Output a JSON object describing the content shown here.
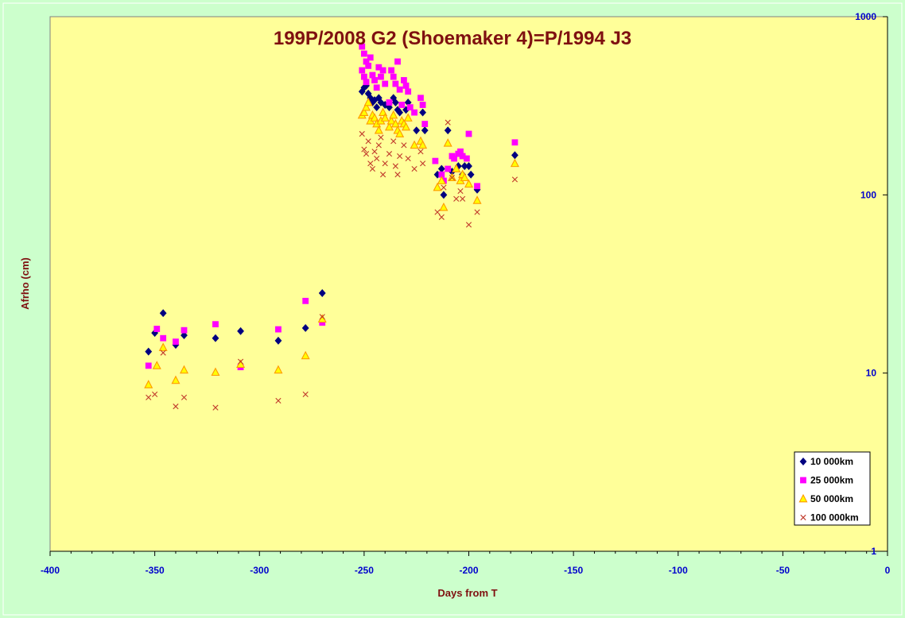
{
  "chart_data": {
    "type": "scatter",
    "title": "199P/2008 G2 (Shoemaker 4)=P/1994 J3",
    "xlabel": "Days from T",
    "ylabel": "Afrho (cm)",
    "xlim": [
      -400,
      0
    ],
    "ylim": [
      1,
      1000
    ],
    "yscale": "log",
    "x_ticks": [
      -400,
      -350,
      -300,
      -250,
      -200,
      -150,
      -100,
      -50,
      0
    ],
    "x_tick_labels": [
      "-400",
      "-350",
      "-300",
      "-250",
      "-200",
      "-150",
      "-100",
      "-50",
      "0"
    ],
    "y_ticks": [
      1,
      10,
      100,
      1000
    ],
    "y_tick_labels": [
      "1",
      "10",
      "100",
      "1000"
    ],
    "y_axis_side": "right",
    "grid": false,
    "legend_position": "bottom-right",
    "plot_background": "#ffff99",
    "page_background": "#ccffcc",
    "series": [
      {
        "name": "10 000km",
        "marker": "diamond",
        "color": "#000080",
        "points": [
          [
            -353,
            13.2
          ],
          [
            -350,
            16.8
          ],
          [
            -346,
            21.7
          ],
          [
            -340,
            14.4
          ],
          [
            -336,
            16.3
          ],
          [
            -321,
            15.7
          ],
          [
            -309,
            17.2
          ],
          [
            -291,
            15.2
          ],
          [
            -278,
            17.9
          ],
          [
            -270,
            28.1
          ],
          [
            -251,
            380
          ],
          [
            -250,
            400
          ],
          [
            -249,
            410
          ],
          [
            -248,
            370
          ],
          [
            -247,
            350
          ],
          [
            -246,
            330
          ],
          [
            -245,
            340
          ],
          [
            -244,
            310
          ],
          [
            -243,
            350
          ],
          [
            -242,
            330
          ],
          [
            -240,
            320
          ],
          [
            -238,
            310
          ],
          [
            -236,
            350
          ],
          [
            -235,
            330
          ],
          [
            -234,
            300
          ],
          [
            -233,
            290
          ],
          [
            -230,
            300
          ],
          [
            -229,
            330
          ],
          [
            -225,
            230
          ],
          [
            -222,
            290
          ],
          [
            -221,
            230
          ],
          [
            -215,
            130
          ],
          [
            -213,
            140
          ],
          [
            -212,
            100
          ],
          [
            -210,
            230
          ],
          [
            -208,
            135
          ],
          [
            -205,
            145
          ],
          [
            -203,
            130
          ],
          [
            -202,
            145
          ],
          [
            -200,
            145
          ],
          [
            -199,
            130
          ],
          [
            -196,
            107
          ],
          [
            -178,
            167
          ]
        ]
      },
      {
        "name": "25 000km",
        "marker": "square",
        "color": "#ff00ff",
        "points": [
          [
            -353,
            11.0
          ],
          [
            -349,
            17.7
          ],
          [
            -346,
            15.7
          ],
          [
            -340,
            15.0
          ],
          [
            -336,
            17.4
          ],
          [
            -321,
            18.8
          ],
          [
            -309,
            10.8
          ],
          [
            -291,
            17.6
          ],
          [
            -278,
            25.4
          ],
          [
            -270,
            19.2
          ],
          [
            -251,
            680
          ],
          [
            -250,
            620
          ],
          [
            -249,
            560
          ],
          [
            -248,
            530
          ],
          [
            -251,
            500
          ],
          [
            -250,
            460
          ],
          [
            -249,
            430
          ],
          [
            -247,
            590
          ],
          [
            -246,
            470
          ],
          [
            -245,
            440
          ],
          [
            -244,
            400
          ],
          [
            -243,
            520
          ],
          [
            -242,
            460
          ],
          [
            -241,
            500
          ],
          [
            -240,
            420
          ],
          [
            -238,
            330
          ],
          [
            -237,
            500
          ],
          [
            -236,
            460
          ],
          [
            -235,
            420
          ],
          [
            -234,
            560
          ],
          [
            -233,
            390
          ],
          [
            -232,
            320
          ],
          [
            -231,
            440
          ],
          [
            -230,
            410
          ],
          [
            -229,
            380
          ],
          [
            -228,
            310
          ],
          [
            -226,
            290
          ],
          [
            -223,
            350
          ],
          [
            -222,
            320
          ],
          [
            -221,
            250
          ],
          [
            -216,
            155
          ],
          [
            -213,
            130
          ],
          [
            -212,
            120
          ],
          [
            -210,
            140
          ],
          [
            -208,
            165
          ],
          [
            -207,
            160
          ],
          [
            -205,
            170
          ],
          [
            -204,
            175
          ],
          [
            -203,
            165
          ],
          [
            -201,
            160
          ],
          [
            -200,
            220
          ],
          [
            -196,
            112
          ],
          [
            -178,
            197
          ]
        ]
      },
      {
        "name": "50 000km",
        "marker": "triangle",
        "color": "#ff9900",
        "points": [
          [
            -353,
            8.6
          ],
          [
            -349,
            11.0
          ],
          [
            -346,
            13.9
          ],
          [
            -340,
            9.1
          ],
          [
            -336,
            10.4
          ],
          [
            -321,
            10.1
          ],
          [
            -309,
            11.2
          ],
          [
            -291,
            10.4
          ],
          [
            -278,
            12.5
          ],
          [
            -270,
            20.1
          ],
          [
            -251,
            280
          ],
          [
            -250,
            290
          ],
          [
            -249,
            310
          ],
          [
            -248,
            330
          ],
          [
            -247,
            260
          ],
          [
            -246,
            280
          ],
          [
            -245,
            270
          ],
          [
            -244,
            250
          ],
          [
            -243,
            230
          ],
          [
            -242,
            260
          ],
          [
            -241,
            290
          ],
          [
            -240,
            270
          ],
          [
            -238,
            240
          ],
          [
            -237,
            260
          ],
          [
            -236,
            280
          ],
          [
            -235,
            250
          ],
          [
            -234,
            230
          ],
          [
            -233,
            220
          ],
          [
            -232,
            260
          ],
          [
            -231,
            250
          ],
          [
            -230,
            240
          ],
          [
            -229,
            270
          ],
          [
            -226,
            190
          ],
          [
            -223,
            200
          ],
          [
            -222,
            190
          ],
          [
            -215,
            110
          ],
          [
            -213,
            120
          ],
          [
            -212,
            85
          ],
          [
            -210,
            195
          ],
          [
            -208,
            125
          ],
          [
            -206,
            140
          ],
          [
            -204,
            120
          ],
          [
            -203,
            130
          ],
          [
            -202,
            125
          ],
          [
            -200,
            115
          ],
          [
            -196,
            93
          ],
          [
            -178,
            150
          ]
        ]
      },
      {
        "name": "100 000km",
        "marker": "x",
        "color": "#c0392b",
        "points": [
          [
            -353,
            7.3
          ],
          [
            -350,
            7.6
          ],
          [
            -346,
            13.0
          ],
          [
            -340,
            6.5
          ],
          [
            -336,
            7.3
          ],
          [
            -321,
            6.4
          ],
          [
            -309,
            11.6
          ],
          [
            -291,
            7.0
          ],
          [
            -278,
            7.6
          ],
          [
            -270,
            20.7
          ],
          [
            -251,
            220
          ],
          [
            -250,
            180
          ],
          [
            -249,
            170
          ],
          [
            -248,
            200
          ],
          [
            -247,
            150
          ],
          [
            -246,
            140
          ],
          [
            -245,
            175
          ],
          [
            -244,
            160
          ],
          [
            -243,
            190
          ],
          [
            -242,
            210
          ],
          [
            -241,
            130
          ],
          [
            -240,
            150
          ],
          [
            -238,
            170
          ],
          [
            -236,
            200
          ],
          [
            -235,
            145
          ],
          [
            -234,
            130
          ],
          [
            -233,
            165
          ],
          [
            -231,
            190
          ],
          [
            -229,
            160
          ],
          [
            -226,
            140
          ],
          [
            -223,
            175
          ],
          [
            -222,
            150
          ],
          [
            -215,
            80
          ],
          [
            -213,
            75
          ],
          [
            -212,
            110
          ],
          [
            -210,
            255
          ],
          [
            -208,
            125
          ],
          [
            -206,
            95
          ],
          [
            -204,
            105
          ],
          [
            -203,
            95
          ],
          [
            -200,
            68
          ],
          [
            -196,
            80
          ],
          [
            -178,
            122
          ]
        ]
      }
    ]
  }
}
